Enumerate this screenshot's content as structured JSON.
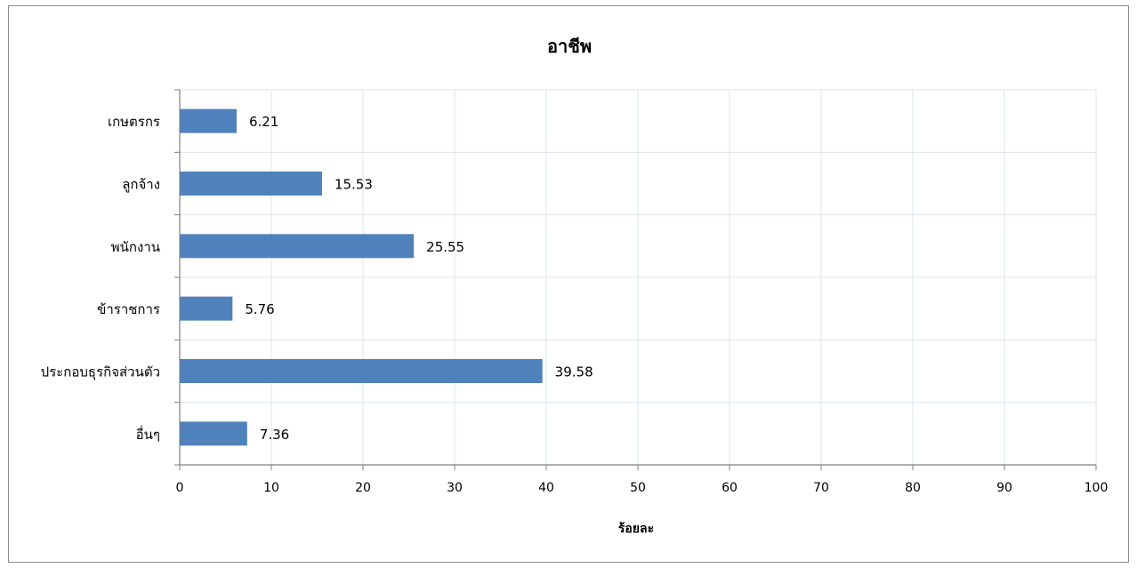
{
  "chart_data": {
    "type": "bar",
    "orientation": "horizontal",
    "title": "อาชีพ",
    "xlabel": "ร้อยละ",
    "ylabel": "",
    "categories": [
      "เกษตรกร",
      "ลูกจ้าง",
      "พนักงาน",
      "ข้าราชการ",
      "ประกอบธุรกิจส่วนตัว",
      "อื่นๆ"
    ],
    "values": [
      6.21,
      15.53,
      25.55,
      5.76,
      39.58,
      7.36
    ],
    "value_labels": [
      "6.21",
      "15.53",
      "25.55",
      "5.76",
      "39.58",
      "7.36"
    ],
    "xlim": [
      0,
      100
    ],
    "x_ticks": [
      "0",
      "10",
      "20",
      "30",
      "40",
      "50",
      "60",
      "70",
      "80",
      "90",
      "100"
    ],
    "grid": true,
    "legend": "none",
    "colors": {
      "bar": "#4f81bd",
      "grid": "#dbe4ef",
      "axis": "#7f7f7f"
    }
  }
}
